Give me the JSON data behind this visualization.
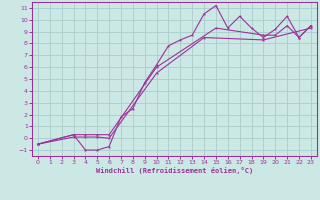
{
  "bg_color": "#cce8e4",
  "grid_color": "#aacccc",
  "line_color": "#993399",
  "xlabel": "Windchill (Refroidissement éolien,°C)",
  "xlim": [
    -0.5,
    23.5
  ],
  "ylim": [
    -1.5,
    11.5
  ],
  "xticks": [
    0,
    1,
    2,
    3,
    4,
    5,
    6,
    7,
    8,
    9,
    10,
    11,
    12,
    13,
    14,
    15,
    16,
    17,
    18,
    19,
    20,
    21,
    22,
    23
  ],
  "yticks": [
    -1,
    0,
    1,
    2,
    3,
    4,
    5,
    6,
    7,
    8,
    9,
    10,
    11
  ],
  "line1_x": [
    0,
    3,
    4,
    5,
    6,
    7,
    8,
    9,
    10,
    11,
    12,
    13,
    14,
    15,
    16,
    17,
    18,
    19,
    20,
    21,
    22,
    23
  ],
  "line1_y": [
    -0.5,
    0.3,
    -1.0,
    -1.0,
    -0.7,
    1.8,
    2.5,
    4.7,
    6.2,
    7.8,
    8.3,
    8.7,
    10.5,
    11.2,
    9.3,
    10.3,
    9.3,
    8.5,
    9.2,
    10.3,
    8.5,
    9.5
  ],
  "line2_x": [
    0,
    3,
    4,
    5,
    6,
    10,
    15,
    19,
    20,
    21,
    22,
    23
  ],
  "line2_y": [
    -0.5,
    0.3,
    0.3,
    0.3,
    0.3,
    6.0,
    9.3,
    8.7,
    8.7,
    9.5,
    8.5,
    9.5
  ],
  "line3_x": [
    0,
    3,
    4,
    5,
    6,
    10,
    14,
    19,
    23
  ],
  "line3_y": [
    -0.5,
    0.1,
    0.1,
    0.1,
    0.0,
    5.5,
    8.5,
    8.3,
    9.3
  ]
}
